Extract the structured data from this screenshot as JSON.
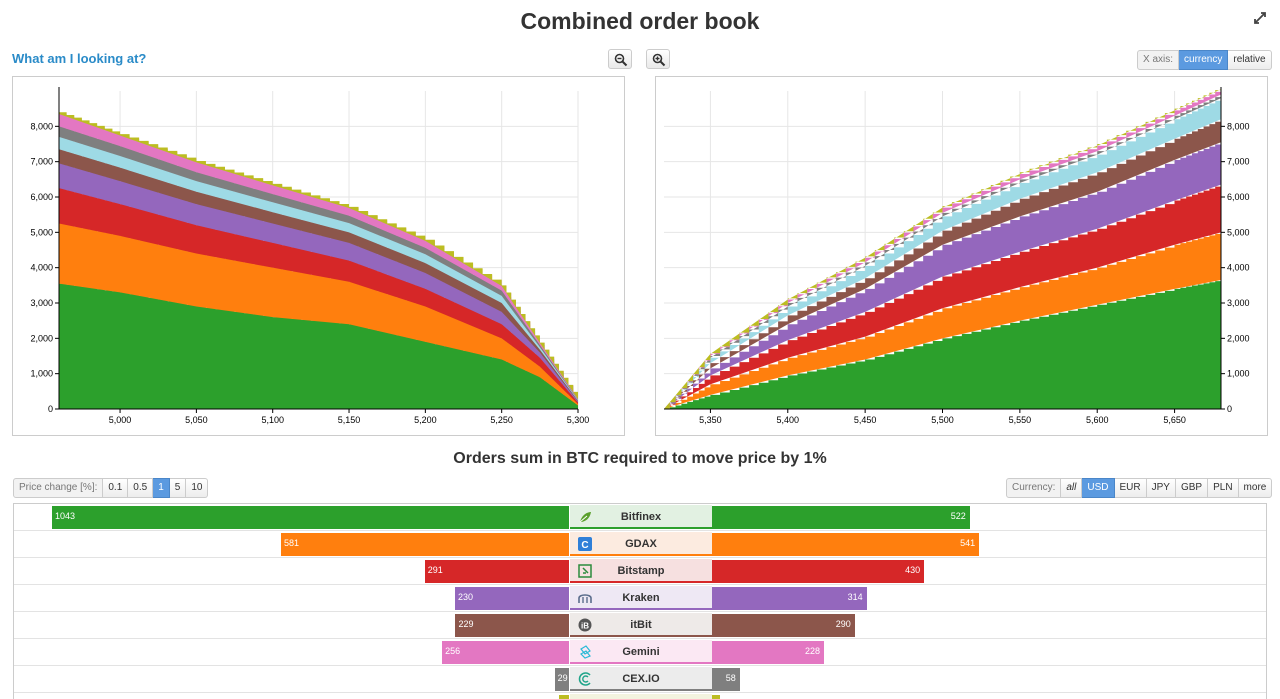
{
  "header": {
    "title": "Combined order book",
    "help_link": "What am I looking at?"
  },
  "x_axis_toggle": {
    "label": "X axis:",
    "options": [
      "currency",
      "relative"
    ],
    "active": "currency"
  },
  "zoom": {
    "zoom_out": "zoom-out",
    "zoom_in": "zoom-in"
  },
  "icons": [
    "expand-icon",
    "zoom-out-icon",
    "zoom-in-icon"
  ],
  "colors": {
    "Bitfinex": "#2ca02c",
    "GDAX": "#ff7f0e",
    "Bitstamp": "#d62728",
    "Kraken": "#9467bd",
    "itBit": "#8c564b",
    "Gemini": "#e377c2",
    "CEX.IO": "#7f7f7f",
    "other": "#bcbd22",
    "teal": "#9edae5"
  },
  "chart_data": [
    {
      "type": "area",
      "side": "bids",
      "stacked": true,
      "x": [
        4960,
        5000,
        5050,
        5100,
        5150,
        5200,
        5250,
        5275,
        5300
      ],
      "xlim": [
        4960,
        5300
      ],
      "ylim": [
        0,
        9000
      ],
      "x_ticks": [
        "5,000",
        "5,050",
        "5,100",
        "5,150",
        "5,200",
        "5,250",
        "5,300"
      ],
      "y_ticks": [
        "0",
        "1,000",
        "2,000",
        "3,000",
        "4,000",
        "5,000",
        "6,000",
        "7,000",
        "8,000"
      ],
      "axis_side": "left",
      "grid": true,
      "series": [
        {
          "values": [
            3550,
            3300,
            2900,
            2600,
            2400,
            1900,
            1400,
            900,
            100
          ]
        },
        {
          "values": [
            1700,
            1600,
            1500,
            1400,
            1200,
            1000,
            600,
            300,
            40
          ]
        },
        {
          "values": [
            1000,
            900,
            800,
            700,
            600,
            500,
            400,
            250,
            40
          ]
        },
        {
          "values": [
            700,
            650,
            600,
            550,
            500,
            450,
            350,
            150,
            30
          ]
        },
        {
          "values": [
            400,
            380,
            350,
            320,
            300,
            280,
            250,
            80,
            20
          ]
        },
        {
          "values": [
            350,
            330,
            300,
            280,
            260,
            250,
            200,
            70,
            20
          ]
        },
        {
          "values": [
            300,
            280,
            250,
            230,
            210,
            180,
            150,
            60,
            15
          ]
        },
        {
          "values": [
            350,
            300,
            280,
            250,
            220,
            200,
            130,
            60,
            15
          ]
        },
        {
          "values": [
            50,
            40,
            40,
            40,
            30,
            30,
            20,
            10,
            5
          ]
        }
      ]
    },
    {
      "type": "area",
      "side": "asks",
      "stacked": true,
      "x": [
        5320,
        5350,
        5400,
        5450,
        5500,
        5550,
        5600,
        5650,
        5680
      ],
      "xlim": [
        5320,
        5680
      ],
      "ylim": [
        0,
        9000
      ],
      "x_ticks": [
        "5,350",
        "5,400",
        "5,450",
        "5,500",
        "5,550",
        "5,600",
        "5,650"
      ],
      "y_ticks": [
        "0",
        "1,000",
        "2,000",
        "3,000",
        "4,000",
        "5,000",
        "6,000",
        "7,000",
        "8,000"
      ],
      "axis_side": "right",
      "grid": true,
      "series": [
        {
          "values": [
            0,
            400,
            950,
            1400,
            2000,
            2500,
            2950,
            3400,
            3650
          ]
        },
        {
          "values": [
            0,
            300,
            500,
            650,
            850,
            950,
            1050,
            1250,
            1350
          ]
        },
        {
          "values": [
            0,
            250,
            500,
            700,
            900,
            1000,
            1100,
            1250,
            1350
          ]
        },
        {
          "values": [
            0,
            200,
            450,
            650,
            900,
            1000,
            1050,
            1150,
            1200
          ]
        },
        {
          "values": [
            0,
            150,
            250,
            300,
            400,
            500,
            550,
            600,
            650
          ]
        },
        {
          "values": [
            0,
            150,
            250,
            350,
            400,
            450,
            500,
            550,
            600
          ]
        },
        {
          "values": [
            0,
            50,
            100,
            100,
            100,
            100,
            100,
            100,
            100
          ]
        },
        {
          "values": [
            0,
            60,
            100,
            130,
            150,
            150,
            150,
            150,
            150
          ]
        },
        {
          "values": [
            0,
            20,
            30,
            40,
            40,
            50,
            50,
            50,
            50
          ]
        }
      ]
    }
  ],
  "book": {
    "subtitle": "Orders sum in BTC required to move price by 1%",
    "price_change": {
      "label": "Price change [%]:",
      "options": [
        "0.1",
        "0.5",
        "1",
        "5",
        "10"
      ],
      "active": "1"
    },
    "currency": {
      "label": "Currency:",
      "options": [
        "all",
        "USD",
        "EUR",
        "JPY",
        "GBP",
        "PLN",
        "more"
      ],
      "active": "USD"
    },
    "max_value": 1043,
    "rows": [
      {
        "exchange": "Bitfinex",
        "bids": "1043",
        "asks": "522",
        "bid_value": 1043,
        "ask_value": 522,
        "color": "#2ca02c",
        "row_bg": "#e2f1e2",
        "icon": "bitfinex-leaf-icon"
      },
      {
        "exchange": "GDAX",
        "bids": "581",
        "asks": "541",
        "bid_value": 581,
        "ask_value": 541,
        "color": "#ff7f0e",
        "row_bg": "#fcebe0",
        "icon": "gdax-icon"
      },
      {
        "exchange": "Bitstamp",
        "bids": "291",
        "asks": "430",
        "bid_value": 291,
        "ask_value": 430,
        "color": "#d62728",
        "row_bg": "#f6e0e0",
        "icon": "bitstamp-icon"
      },
      {
        "exchange": "Kraken",
        "bids": "230",
        "asks": "314",
        "bid_value": 230,
        "ask_value": 314,
        "color": "#9467bd",
        "row_bg": "#eee8f4",
        "icon": "kraken-icon"
      },
      {
        "exchange": "itBit",
        "bids": "229",
        "asks": "290",
        "bid_value": 229,
        "ask_value": 290,
        "color": "#8c564b",
        "row_bg": "#eeeae8",
        "icon": "itbit-icon"
      },
      {
        "exchange": "Gemini",
        "bids": "256",
        "asks": "228",
        "bid_value": 256,
        "ask_value": 228,
        "color": "#e377c2",
        "row_bg": "#fbe8f3",
        "icon": "gemini-icon"
      },
      {
        "exchange": "CEX.IO",
        "bids": "29",
        "asks": "58",
        "bid_value": 29,
        "ask_value": 58,
        "color": "#7f7f7f",
        "row_bg": "#ececec",
        "icon": "cexio-icon"
      },
      {
        "exchange": "",
        "bids": "",
        "asks": "",
        "bid_value": 20,
        "ask_value": 18,
        "color": "#bcbd22",
        "row_bg": "#f3f3df",
        "icon": ""
      }
    ]
  }
}
